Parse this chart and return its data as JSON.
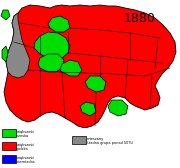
{
  "title": "1880",
  "title_fontsize": 9,
  "bg_color": "#ffffff",
  "colors": {
    "polish": "#ff0000",
    "czech": "#00dd00",
    "german": "#0000ff",
    "mixed": "#888888",
    "border": "#000000",
    "white": "#ffffff"
  },
  "legend_items": [
    {
      "label_line1": "większość",
      "label_line2": "czeska",
      "color": "#00dd00"
    },
    {
      "label_line1": "większość",
      "label_line2": "polska",
      "color": "#ff0000"
    },
    {
      "label_line1": "większość",
      "label_line2": "niemiecka",
      "color": "#0000ff"
    }
  ],
  "legend_mixed_line1": "mieszany",
  "legend_mixed_line2": "(żadna grupa ponad 50%)",
  "legend_mixed_color": "#888888"
}
